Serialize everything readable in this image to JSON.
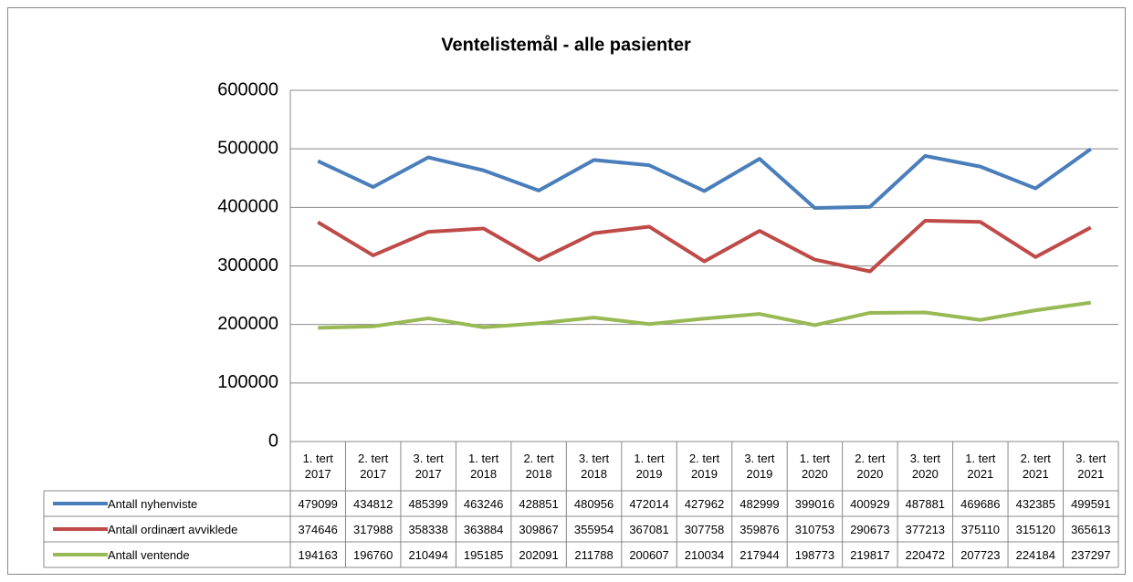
{
  "chart_data": {
    "type": "line",
    "title": "Ventelistemål - alle pasienter",
    "categories": [
      "1. tert 2017",
      "2. tert 2017",
      "3. tert 2017",
      "1. tert 2018",
      "2. tert 2018",
      "3. tert 2018",
      "1. tert 2019",
      "2. tert 2019",
      "3. tert 2019",
      "1. tert 2020",
      "2. tert 2020",
      "3. tert 2020",
      "1. tert 2021",
      "2. tert 2021",
      "3. tert 2021"
    ],
    "series": [
      {
        "name": "Antall nyhenviste",
        "color": "#4a7ebb",
        "values": [
          479099,
          434812,
          485399,
          463246,
          428851,
          480956,
          472014,
          427962,
          482999,
          399016,
          400929,
          487881,
          469686,
          432385,
          499591
        ]
      },
      {
        "name": "Antall ordinært avviklede",
        "color": "#be4b48",
        "values": [
          374646,
          317988,
          358338,
          363884,
          309867,
          355954,
          367081,
          307758,
          359876,
          310753,
          290673,
          377213,
          375110,
          315120,
          365613
        ]
      },
      {
        "name": "Antall ventende",
        "color": "#98b954",
        "values": [
          194163,
          196760,
          210494,
          195185,
          202091,
          211788,
          200607,
          210034,
          217944,
          198773,
          219817,
          220472,
          207723,
          224184,
          237297
        ]
      }
    ],
    "ylim": [
      0,
      600000
    ],
    "yticks": [
      0,
      100000,
      200000,
      300000,
      400000,
      500000,
      600000
    ],
    "grid": true,
    "data_table": true
  }
}
